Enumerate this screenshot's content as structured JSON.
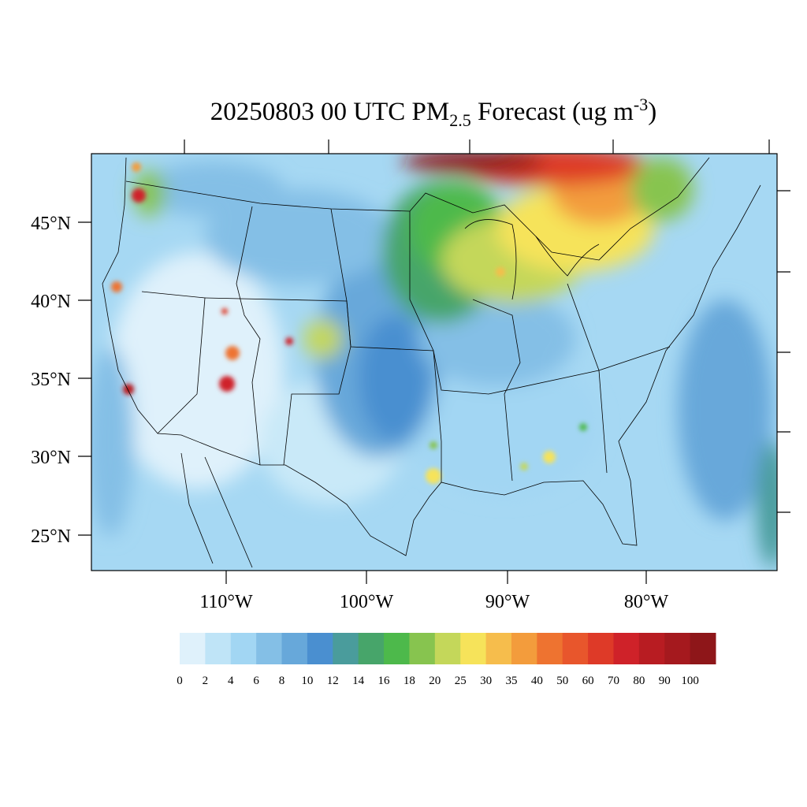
{
  "title": {
    "parts": [
      "20250803 00 UTC PM",
      "2.5",
      " Forecast (ug m",
      "-3",
      ")"
    ]
  },
  "lat_labels": [
    "45°N",
    "40°N",
    "35°N",
    "30°N",
    "25°N"
  ],
  "lon_labels": [
    "110°W",
    "100°W",
    "90°W",
    "80°W"
  ],
  "colorbar": {
    "levels": [
      0,
      2,
      4,
      6,
      8,
      10,
      12,
      14,
      16,
      18,
      20,
      25,
      30,
      35,
      40,
      50,
      60,
      70,
      80,
      90,
      100
    ],
    "colors": [
      "#dff1fb",
      "#bfe4f7",
      "#a2d6f3",
      "#84bfe6",
      "#67a8da",
      "#4a8fd0",
      "#4a9c9c",
      "#47a56a",
      "#4db94b",
      "#87c44f",
      "#c4d75a",
      "#f6e35a",
      "#f6bd4c",
      "#f39c3c",
      "#ee7330",
      "#e8562c",
      "#de3a28",
      "#cf2229",
      "#b81c22",
      "#a5191e",
      "#8e1619"
    ]
  }
}
